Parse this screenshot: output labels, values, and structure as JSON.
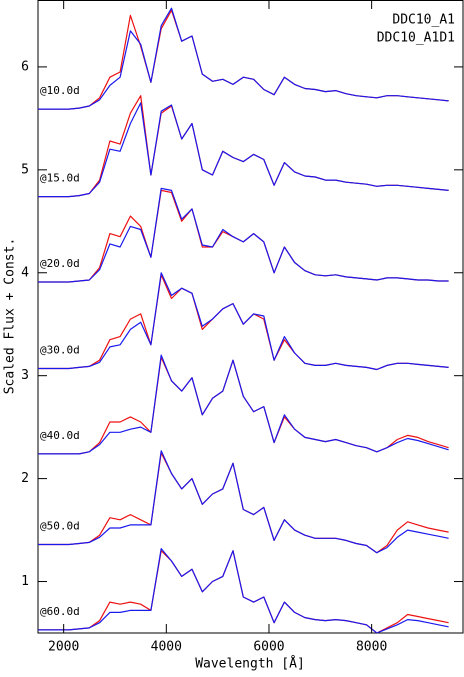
{
  "chart_data": {
    "type": "line",
    "xlabel": "Wavelength  [Å]",
    "ylabel": "Scaled Flux + Const.",
    "xlim": [
      1500,
      9780
    ],
    "ylim": [
      0.5,
      6.65
    ],
    "xticks": [
      2000,
      4000,
      6000,
      8000
    ],
    "yticks": [
      1,
      2,
      3,
      4,
      5,
      6
    ],
    "annotations": [
      "@10.0d",
      "@15.0d",
      "@20.0d",
      "@30.0d",
      "@40.0d",
      "@50.0d",
      "@60.0d"
    ],
    "legend": "upper right",
    "x": [
      1500,
      1700,
      1900,
      2100,
      2300,
      2500,
      2700,
      2900,
      3100,
      3300,
      3500,
      3700,
      3900,
      4100,
      4300,
      4500,
      4700,
      4900,
      5100,
      5300,
      5500,
      5700,
      5900,
      6100,
      6300,
      6500,
      6700,
      6900,
      7100,
      7300,
      7500,
      7700,
      7900,
      8100,
      8300,
      8500,
      8700,
      8900,
      9100,
      9300,
      9500
    ],
    "series": [
      {
        "name": "DDC10_A1",
        "color": "#ee1111",
        "values": [
          [
            5.59,
            5.59,
            5.59,
            5.59,
            5.6,
            5.62,
            5.7,
            5.9,
            5.95,
            6.5,
            6.2,
            5.85,
            6.37,
            6.55,
            6.25,
            6.3,
            5.93,
            5.86,
            5.88,
            5.83,
            5.9,
            5.88,
            5.78,
            5.73,
            5.9,
            5.83,
            5.79,
            5.78,
            5.76,
            5.77,
            5.74,
            5.72,
            5.71,
            5.7,
            5.72,
            5.72,
            5.71,
            5.7,
            5.69,
            5.68,
            5.67
          ],
          [
            4.74,
            4.74,
            4.74,
            4.74,
            4.75,
            4.77,
            4.9,
            5.28,
            5.25,
            5.55,
            5.72,
            4.95,
            5.55,
            5.62,
            5.3,
            5.45,
            5.0,
            4.95,
            5.18,
            5.12,
            5.08,
            5.15,
            5.1,
            4.85,
            5.07,
            4.98,
            4.94,
            4.93,
            4.9,
            4.9,
            4.88,
            4.87,
            4.86,
            4.84,
            4.85,
            4.85,
            4.84,
            4.83,
            4.82,
            4.81,
            4.8
          ],
          [
            3.91,
            3.91,
            3.91,
            3.91,
            3.92,
            3.93,
            4.05,
            4.38,
            4.35,
            4.55,
            4.45,
            4.15,
            4.8,
            4.78,
            4.5,
            4.62,
            4.25,
            4.25,
            4.4,
            4.35,
            4.3,
            4.38,
            4.3,
            4.0,
            4.25,
            4.1,
            4.02,
            3.98,
            3.97,
            3.98,
            3.96,
            3.95,
            3.94,
            3.93,
            3.95,
            3.95,
            3.94,
            3.93,
            3.93,
            3.92,
            3.92
          ],
          [
            3.07,
            3.07,
            3.07,
            3.07,
            3.08,
            3.09,
            3.15,
            3.35,
            3.38,
            3.55,
            3.6,
            3.3,
            3.98,
            3.75,
            3.85,
            3.8,
            3.45,
            3.55,
            3.65,
            3.7,
            3.5,
            3.6,
            3.55,
            3.15,
            3.35,
            3.22,
            3.12,
            3.1,
            3.1,
            3.12,
            3.1,
            3.09,
            3.08,
            3.06,
            3.1,
            3.12,
            3.12,
            3.11,
            3.1,
            3.09,
            3.08
          ],
          [
            2.24,
            2.24,
            2.24,
            2.24,
            2.24,
            2.26,
            2.35,
            2.55,
            2.55,
            2.6,
            2.55,
            2.45,
            3.18,
            2.95,
            2.85,
            2.98,
            2.62,
            2.78,
            2.85,
            3.15,
            2.8,
            2.65,
            2.7,
            2.35,
            2.6,
            2.48,
            2.4,
            2.38,
            2.36,
            2.38,
            2.35,
            2.32,
            2.3,
            2.26,
            2.3,
            2.38,
            2.42,
            2.4,
            2.36,
            2.33,
            2.3
          ],
          [
            1.36,
            1.36,
            1.36,
            1.36,
            1.37,
            1.38,
            1.45,
            1.62,
            1.6,
            1.65,
            1.6,
            1.55,
            2.25,
            2.05,
            1.9,
            2.0,
            1.75,
            1.85,
            1.9,
            2.15,
            1.7,
            1.65,
            1.72,
            1.4,
            1.6,
            1.5,
            1.45,
            1.42,
            1.42,
            1.42,
            1.4,
            1.37,
            1.35,
            1.28,
            1.35,
            1.5,
            1.58,
            1.55,
            1.52,
            1.5,
            1.48
          ],
          [
            0.53,
            0.53,
            0.53,
            0.53,
            0.54,
            0.55,
            0.62,
            0.8,
            0.78,
            0.8,
            0.78,
            0.72,
            1.3,
            1.2,
            1.05,
            1.12,
            0.9,
            1.0,
            1.05,
            1.3,
            0.85,
            0.8,
            0.85,
            0.6,
            0.8,
            0.7,
            0.65,
            0.63,
            0.62,
            0.63,
            0.62,
            0.6,
            0.58,
            0.5,
            0.55,
            0.6,
            0.68,
            0.66,
            0.64,
            0.62,
            0.6
          ]
        ]
      },
      {
        "name": "DDC10_A1D1",
        "color": "#1a1aee",
        "values": [
          [
            5.59,
            5.59,
            5.59,
            5.59,
            5.6,
            5.62,
            5.68,
            5.82,
            5.9,
            6.35,
            6.22,
            5.85,
            6.4,
            6.57,
            6.25,
            6.3,
            5.93,
            5.86,
            5.88,
            5.83,
            5.9,
            5.88,
            5.78,
            5.73,
            5.9,
            5.83,
            5.79,
            5.78,
            5.76,
            5.77,
            5.74,
            5.72,
            5.71,
            5.7,
            5.72,
            5.72,
            5.71,
            5.7,
            5.69,
            5.68,
            5.67
          ],
          [
            4.74,
            4.74,
            4.74,
            4.74,
            4.75,
            4.77,
            4.88,
            5.2,
            5.18,
            5.45,
            5.65,
            4.95,
            5.57,
            5.63,
            5.3,
            5.45,
            5.0,
            4.95,
            5.18,
            5.12,
            5.08,
            5.15,
            5.1,
            4.85,
            5.07,
            4.98,
            4.94,
            4.93,
            4.9,
            4.9,
            4.88,
            4.87,
            4.86,
            4.84,
            4.85,
            4.85,
            4.84,
            4.83,
            4.82,
            4.81,
            4.8
          ],
          [
            3.91,
            3.91,
            3.91,
            3.91,
            3.92,
            3.93,
            4.03,
            4.28,
            4.25,
            4.45,
            4.42,
            4.15,
            4.82,
            4.8,
            4.52,
            4.62,
            4.27,
            4.25,
            4.42,
            4.35,
            4.3,
            4.38,
            4.3,
            4.0,
            4.25,
            4.1,
            4.02,
            3.98,
            3.97,
            3.98,
            3.96,
            3.95,
            3.94,
            3.93,
            3.95,
            3.95,
            3.94,
            3.93,
            3.93,
            3.92,
            3.92
          ],
          [
            3.07,
            3.07,
            3.07,
            3.07,
            3.08,
            3.09,
            3.13,
            3.28,
            3.3,
            3.45,
            3.52,
            3.3,
            4.0,
            3.78,
            3.85,
            3.8,
            3.48,
            3.55,
            3.65,
            3.7,
            3.5,
            3.6,
            3.58,
            3.15,
            3.38,
            3.22,
            3.12,
            3.1,
            3.1,
            3.12,
            3.1,
            3.09,
            3.08,
            3.06,
            3.1,
            3.12,
            3.12,
            3.11,
            3.1,
            3.09,
            3.08
          ],
          [
            2.24,
            2.24,
            2.24,
            2.24,
            2.24,
            2.26,
            2.33,
            2.45,
            2.45,
            2.48,
            2.5,
            2.45,
            3.2,
            2.95,
            2.85,
            2.98,
            2.62,
            2.78,
            2.85,
            3.15,
            2.8,
            2.65,
            2.7,
            2.35,
            2.62,
            2.48,
            2.4,
            2.38,
            2.36,
            2.38,
            2.35,
            2.32,
            2.3,
            2.26,
            2.3,
            2.35,
            2.39,
            2.37,
            2.34,
            2.31,
            2.28
          ],
          [
            1.36,
            1.36,
            1.36,
            1.36,
            1.37,
            1.38,
            1.43,
            1.52,
            1.52,
            1.55,
            1.55,
            1.55,
            2.27,
            2.05,
            1.9,
            2.0,
            1.75,
            1.85,
            1.9,
            2.15,
            1.7,
            1.65,
            1.72,
            1.4,
            1.6,
            1.5,
            1.45,
            1.42,
            1.42,
            1.42,
            1.4,
            1.37,
            1.35,
            1.28,
            1.33,
            1.43,
            1.5,
            1.48,
            1.46,
            1.44,
            1.42
          ],
          [
            0.53,
            0.53,
            0.53,
            0.53,
            0.54,
            0.55,
            0.6,
            0.7,
            0.7,
            0.72,
            0.72,
            0.72,
            1.32,
            1.2,
            1.05,
            1.12,
            0.9,
            1.0,
            1.05,
            1.3,
            0.85,
            0.8,
            0.85,
            0.6,
            0.8,
            0.7,
            0.65,
            0.63,
            0.62,
            0.63,
            0.62,
            0.6,
            0.58,
            0.5,
            0.54,
            0.58,
            0.63,
            0.62,
            0.6,
            0.58,
            0.56
          ]
        ]
      }
    ]
  }
}
